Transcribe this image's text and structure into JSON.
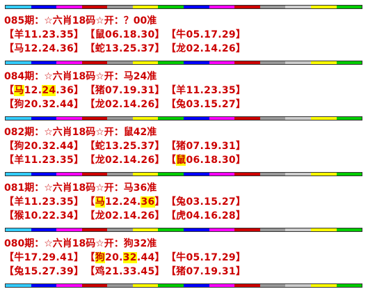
{
  "colors": {
    "text": "#cc0000",
    "highlight": "#ffff00",
    "bar": [
      "#33ccff",
      "#0000ff",
      "#ff00ff",
      "#cc0000",
      "#999999",
      "#ffff00",
      "#00cc00",
      "#0000ff",
      "#ff00ff",
      "#cc0000",
      "#999999",
      "#cccccc",
      "#ffff00",
      "#00cc00"
    ]
  },
  "entries": [
    {
      "title": "085期：☆六肖18码☆开：？00准",
      "rows": [
        [
          {
            "open": "【",
            "parts": [
              {
                "t": "羊11.23.35"
              }
            ],
            "close": "】"
          },
          {
            "open": "【",
            "parts": [
              {
                "t": "鼠06.18.30"
              }
            ],
            "close": "】"
          },
          {
            "open": "【",
            "parts": [
              {
                "t": "牛05.17.29"
              }
            ],
            "close": "】"
          }
        ],
        [
          {
            "open": "【",
            "parts": [
              {
                "t": "马12.24.36"
              }
            ],
            "close": "】"
          },
          {
            "open": "【",
            "parts": [
              {
                "t": "蛇13.25.37"
              }
            ],
            "close": "】"
          },
          {
            "open": "【",
            "parts": [
              {
                "t": "龙02.14.26"
              }
            ],
            "close": "】"
          }
        ]
      ]
    },
    {
      "title": "084期：☆六肖18码☆开：马24准",
      "rows": [
        [
          {
            "open": "【",
            "parts": [
              {
                "t": "马",
                "hl": true
              },
              {
                "t": "12."
              },
              {
                "t": "24",
                "hl": true
              },
              {
                "t": ".36"
              }
            ],
            "close": "】"
          },
          {
            "open": "【",
            "parts": [
              {
                "t": "猪07.19.31"
              }
            ],
            "close": "】"
          },
          {
            "open": "【",
            "parts": [
              {
                "t": "羊11.23.35"
              }
            ],
            "close": "】"
          }
        ],
        [
          {
            "open": "【",
            "parts": [
              {
                "t": "狗20.32.44"
              }
            ],
            "close": "】"
          },
          {
            "open": "【",
            "parts": [
              {
                "t": "龙02.14.26"
              }
            ],
            "close": "】"
          },
          {
            "open": "【",
            "parts": [
              {
                "t": "兔03.15.27"
              }
            ],
            "close": "】"
          }
        ]
      ]
    },
    {
      "title": "082期：☆六肖18码☆开：鼠42准",
      "rows": [
        [
          {
            "open": "【",
            "parts": [
              {
                "t": "狗20.32.44"
              }
            ],
            "close": "】"
          },
          {
            "open": "【",
            "parts": [
              {
                "t": "蛇13.25.37"
              }
            ],
            "close": "】"
          },
          {
            "open": "【",
            "parts": [
              {
                "t": "猪07.19.31"
              }
            ],
            "close": "】"
          }
        ],
        [
          {
            "open": "【",
            "parts": [
              {
                "t": "羊11.23.35"
              }
            ],
            "close": "】"
          },
          {
            "open": "【",
            "parts": [
              {
                "t": "龙02.14.26"
              }
            ],
            "close": "】"
          },
          {
            "open": "【",
            "parts": [
              {
                "t": "鼠",
                "hl": true
              },
              {
                "t": "06.18.30"
              }
            ],
            "close": "】"
          }
        ]
      ]
    },
    {
      "title": "081期：☆六肖18码☆开：马36准",
      "rows": [
        [
          {
            "open": "【",
            "parts": [
              {
                "t": "羊11.23.35"
              }
            ],
            "close": "】"
          },
          {
            "open": "【",
            "parts": [
              {
                "t": "马",
                "hl": true
              },
              {
                "t": "12.24."
              },
              {
                "t": "36",
                "hl": true
              }
            ],
            "close": "】"
          },
          {
            "open": "【",
            "parts": [
              {
                "t": "兔03.15.27"
              }
            ],
            "close": "】"
          }
        ],
        [
          {
            "open": "【",
            "parts": [
              {
                "t": "猴10.22.34"
              }
            ],
            "close": "】"
          },
          {
            "open": "【",
            "parts": [
              {
                "t": "龙02.14.26"
              }
            ],
            "close": "】"
          },
          {
            "open": "【",
            "parts": [
              {
                "t": "虎04.16.28"
              }
            ],
            "close": "】"
          }
        ]
      ]
    },
    {
      "title": "080期：☆六肖18码☆开：狗32准",
      "rows": [
        [
          {
            "open": "【",
            "parts": [
              {
                "t": "牛17.29.41"
              }
            ],
            "close": "】"
          },
          {
            "open": "【",
            "parts": [
              {
                "t": "狗",
                "hl": true
              },
              {
                "t": "20."
              },
              {
                "t": "32",
                "hl": true
              },
              {
                "t": ".44"
              }
            ],
            "close": "】"
          },
          {
            "open": "【",
            "parts": [
              {
                "t": "牛05.17.29"
              }
            ],
            "close": "】"
          }
        ],
        [
          {
            "open": "【",
            "parts": [
              {
                "t": "兔15.27.39"
              }
            ],
            "close": "】"
          },
          {
            "open": "【",
            "parts": [
              {
                "t": "鸡21.33.45"
              }
            ],
            "close": "】"
          },
          {
            "open": "【",
            "parts": [
              {
                "t": "猪07.19.31"
              }
            ],
            "close": "】"
          }
        ]
      ]
    }
  ]
}
